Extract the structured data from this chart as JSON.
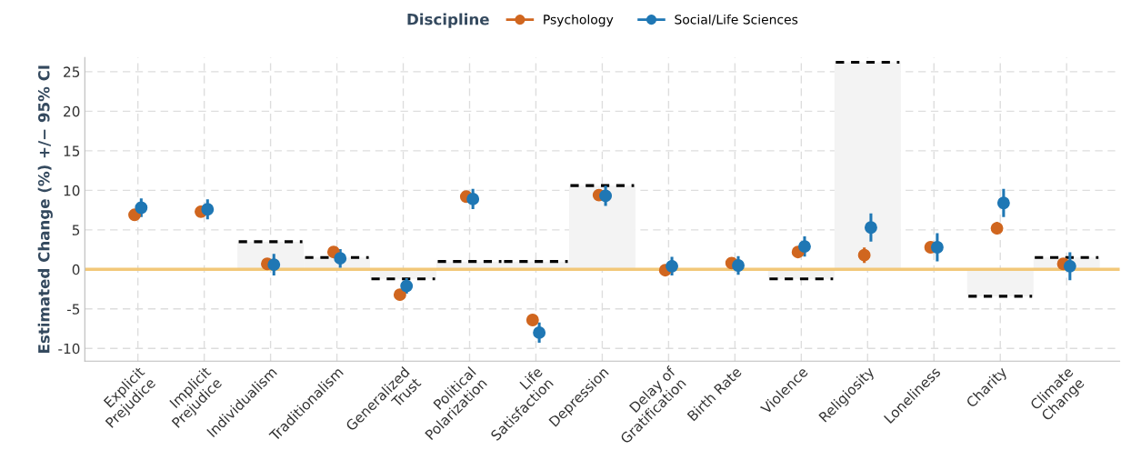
{
  "chart_data": {
    "type": "scatter",
    "ylabel": "Estimated Change (%) +/− 95% CI",
    "legend_title": "Discipline",
    "categories": [
      "Explicit\nPrejudice",
      "Implicit\nPrejudice",
      "Individualism",
      "Traditionalism",
      "Generalized\nTrust",
      "Political\nPolarization",
      "Life\nSatisfaction",
      "Depression",
      "Delay of\nGratification",
      "Birth Rate",
      "Violence",
      "Religiosity",
      "Loneliness",
      "Charity",
      "Climate\nChange"
    ],
    "series": [
      {
        "type": "bar",
        "color": "#f3f3f3",
        "line_style": "dashed",
        "values": [
          null,
          null,
          3.5,
          1.5,
          -1.2,
          1.0,
          1.0,
          10.6,
          null,
          null,
          -1.2,
          26.2,
          null,
          -3.4,
          1.5
        ]
      },
      {
        "name": "Psychology",
        "color": "#d0661f",
        "values": [
          6.9,
          7.3,
          0.7,
          2.2,
          -3.2,
          9.2,
          -6.4,
          9.4,
          -0.1,
          0.8,
          2.2,
          1.8,
          2.8,
          5.2,
          0.7
        ],
        "errors": [
          0.5,
          0.5,
          0.5,
          0.5,
          0.5,
          0.5,
          0.5,
          0.5,
          0.5,
          0.5,
          0.5,
          0.8,
          0.5,
          0.6,
          0.5
        ]
      },
      {
        "name": "Social/Life Sciences",
        "color": "#1f77b4",
        "values": [
          7.8,
          7.6,
          0.6,
          1.4,
          -2.1,
          8.9,
          -8.0,
          9.3,
          0.4,
          0.5,
          2.9,
          5.3,
          2.8,
          8.4,
          0.4
        ],
        "errors": [
          1.0,
          1.1,
          1.2,
          1.0,
          0.8,
          1.1,
          1.1,
          1.1,
          1.0,
          1.0,
          1.1,
          1.6,
          1.6,
          1.6,
          1.6
        ]
      }
    ],
    "ref_lines": [
      {
        "axis": "y",
        "value": 0,
        "color": "#f2c879"
      }
    ],
    "ylim": [
      -11.6,
      26.8
    ],
    "yticks": [
      -10,
      -5,
      0,
      5,
      10,
      15,
      20,
      25
    ],
    "grid": true,
    "legend": "top",
    "marker": "circle"
  }
}
